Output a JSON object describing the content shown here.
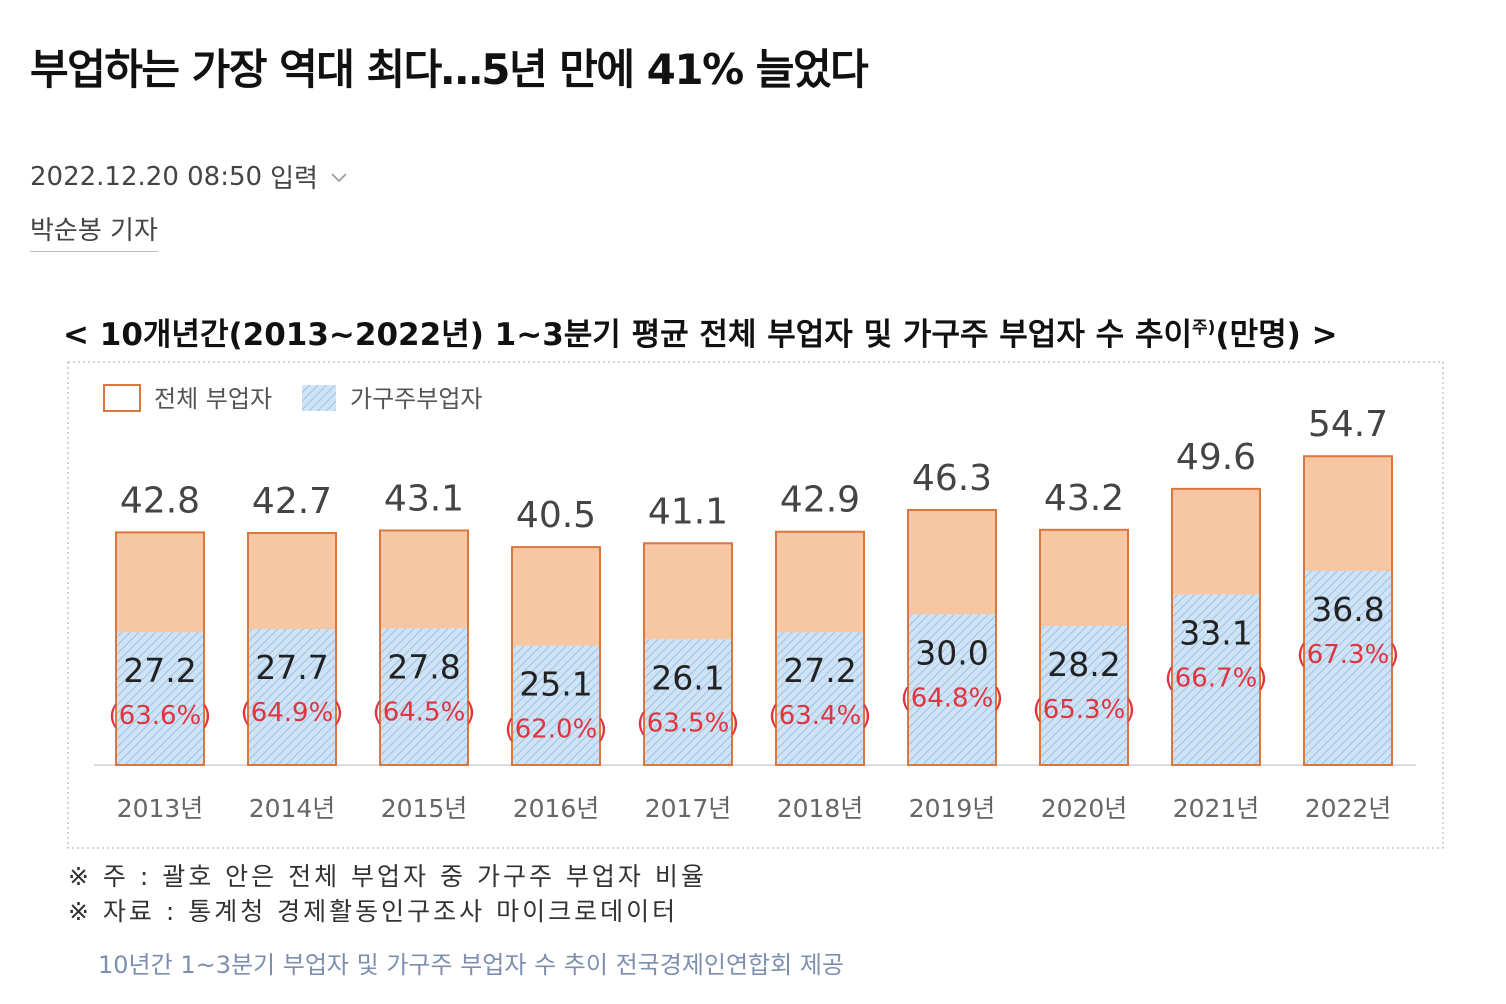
{
  "article": {
    "headline": "부업하는 가장 역대 최다…5년 만에 41% 늘었다",
    "timestamp": "2022.12.20 08:50",
    "timestamp_label": "입력",
    "reporter": "박순봉 기자",
    "caption": "10년간 1~3분기 부업자 및 가구주 부업자 수 추이 전국경제인연합회 제공"
  },
  "chart_data": {
    "type": "bar",
    "title": "< 10개년간(2013~2022년) 1~3분기 평균 전체 부업자 및 가구주 부업자 수 추이",
    "title_superscript": "주)",
    "title_unit": "(만명) >",
    "categories": [
      "2013년",
      "2014년",
      "2015년",
      "2016년",
      "2017년",
      "2018년",
      "2019년",
      "2020년",
      "2021년",
      "2022년"
    ],
    "series": [
      {
        "name": "전체 부업자",
        "values": [
          42.8,
          42.7,
          43.1,
          40.5,
          41.1,
          42.9,
          46.3,
          43.2,
          49.6,
          54.7
        ],
        "color": "#f7c6a3",
        "stroke": "#d9773c"
      },
      {
        "name": "가구주부업자",
        "values": [
          27.2,
          27.7,
          27.8,
          25.1,
          26.1,
          27.2,
          30.0,
          28.2,
          33.1,
          36.8
        ],
        "color": "#c9e0f4",
        "stroke": "#5b9bd5"
      }
    ],
    "shares": [
      "(63.6%)",
      "(64.9%)",
      "(64.5%)",
      "(62.0%)",
      "(63.5%)",
      "(63.4%)",
      "(64.8%)",
      "(65.3%)",
      "(66.7%)",
      "(67.3%)"
    ],
    "share_color": "#e0343e",
    "ylim": [
      0,
      60
    ],
    "legend_position": "top-left",
    "notes": [
      "※ 주 : 괄호 안은 전체 부업자 중 가구주 부업자 비율",
      "※ 자료 : 통계청 경제활동인구조사 마이크로데이터"
    ]
  }
}
